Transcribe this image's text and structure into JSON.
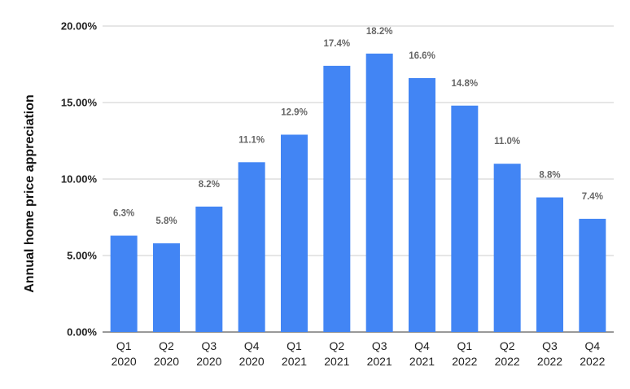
{
  "chart_data": {
    "type": "bar",
    "ylabel": "Annual home price appreciation",
    "categories": [
      [
        "Q1",
        "2020"
      ],
      [
        "Q2",
        "2020"
      ],
      [
        "Q3",
        "2020"
      ],
      [
        "Q4",
        "2020"
      ],
      [
        "Q1",
        "2021"
      ],
      [
        "Q2",
        "2021"
      ],
      [
        "Q3",
        "2021"
      ],
      [
        "Q4",
        "2021"
      ],
      [
        "Q1",
        "2022"
      ],
      [
        "Q2",
        "2022"
      ],
      [
        "Q3",
        "2022"
      ],
      [
        "Q4",
        "2022"
      ]
    ],
    "values": [
      6.3,
      5.8,
      8.2,
      11.1,
      12.9,
      17.4,
      18.2,
      16.6,
      14.8,
      11.0,
      8.8,
      7.4
    ],
    "data_labels": [
      "6.3%",
      "5.8%",
      "8.2%",
      "11.1%",
      "12.9%",
      "17.4%",
      "18.2%",
      "16.6%",
      "14.8%",
      "11.0%",
      "8.8%",
      "7.4%"
    ],
    "yticks": [
      0,
      5,
      10,
      15,
      20
    ],
    "ytick_labels": [
      "0.00%",
      "5.00%",
      "10.00%",
      "15.00%",
      "20.00%"
    ],
    "ylim": [
      0,
      20
    ],
    "grid": true,
    "legend": "none",
    "bar_color": "#4285F4",
    "grid_color": "#cccccc"
  }
}
